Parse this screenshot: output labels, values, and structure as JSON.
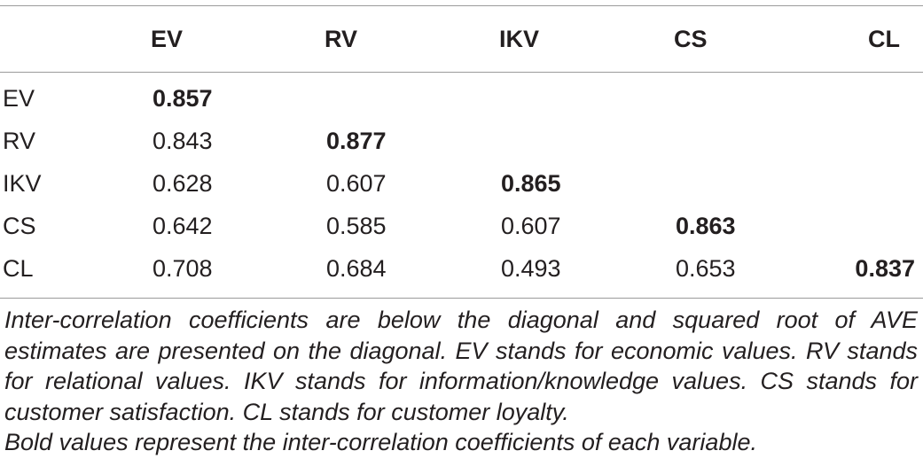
{
  "table": {
    "headers": [
      "",
      "EV",
      "RV",
      "IKV",
      "CS",
      "CL"
    ],
    "rows": [
      {
        "label": "EV",
        "values": [
          "0.857",
          "",
          "",
          "",
          ""
        ]
      },
      {
        "label": "RV",
        "values": [
          "0.843",
          "0.877",
          "",
          "",
          ""
        ]
      },
      {
        "label": "IKV",
        "values": [
          "0.628",
          "0.607",
          "0.865",
          "",
          ""
        ]
      },
      {
        "label": "CS",
        "values": [
          "0.642",
          "0.585",
          "0.607",
          "0.863",
          ""
        ]
      },
      {
        "label": "CL",
        "values": [
          "0.708",
          "0.684",
          "0.493",
          "0.653",
          "0.837"
        ]
      }
    ]
  },
  "notes": {
    "note1": "Inter-correlation coefficients are below the diagonal and squared root of AVE estimates are presented on the diagonal. EV stands for economic values. RV stands for relational values. IKV stands for information/knowledge values. CS stands for customer satisfaction. CL stands for customer loyalty.",
    "note2": "Bold values represent the inter-correlation coefficients of each variable."
  }
}
